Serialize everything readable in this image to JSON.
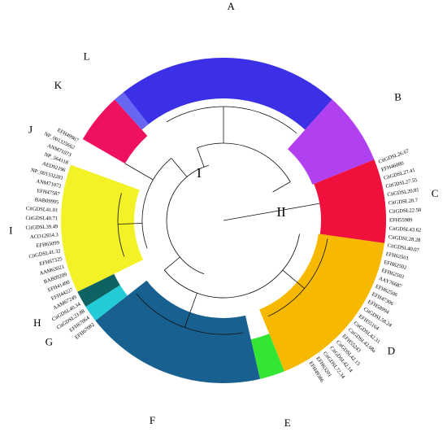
{
  "roots": [
    "I",
    "II"
  ],
  "clades": [
    {
      "label": "A",
      "color": "#3b30e6"
    },
    {
      "label": "B",
      "color": "#b040f0"
    },
    {
      "label": "C",
      "color": "#f0103c"
    },
    {
      "label": "D",
      "color": "#f7b800"
    },
    {
      "label": "E",
      "color": "#33e633"
    },
    {
      "label": "F",
      "color": "#17608f"
    },
    {
      "label": "G",
      "color": "#22cbd6"
    },
    {
      "label": "H",
      "color": "#0f6262"
    },
    {
      "label": "I",
      "color": "#f2f226"
    },
    {
      "label": "J",
      "color": "#ffffff"
    },
    {
      "label": "K",
      "color": "#f01060"
    },
    {
      "label": "L",
      "color": "#6666f2"
    }
  ],
  "right_leaves": [
    "CitGDSL26.67",
    "EFH46080",
    "CitGDSL27.41",
    "CitGDSL27.55",
    "CitGDSL20.81",
    "CitGDSL28.7",
    "CitGDSL22.58",
    "EFH55989",
    "CitGDSL43.62",
    "CitGDSL28.28",
    "CitGDSL40.07",
    "EFH62501",
    "EFH62502",
    "EFH62503",
    "AAY76687",
    "EFH62506",
    "EFH47306",
    "EFH58994",
    "CitGDSL58.24",
    "EFH55164",
    "CitGDSL42.31",
    "CitGDSL42.68a",
    "EFH55243",
    "CitGDSL42.15",
    "CitGDSL42.14",
    "CitGDSL72.34",
    "EFH63201",
    "EFH49386"
  ],
  "left_leaves": [
    "EFH67082",
    "EFH67064",
    "CitGDSL23.88",
    "CitGDSL40.34",
    "AAM67249",
    "EFH44227",
    "EFH41490",
    "BAB09209",
    "AAM63021",
    "EFH67325",
    "CitGDSL41.32",
    "EFH65099",
    "ACO12654.3",
    "CitGDSL39.49",
    "CitGDSL40.71",
    "CitGDSL41.01",
    "BAB09995",
    "EFH47587",
    "ANM71072",
    "NP_001332281",
    "AED92196",
    "NP_564118",
    "ANM71073",
    "NP_001325662",
    "EFH49967"
  ]
}
